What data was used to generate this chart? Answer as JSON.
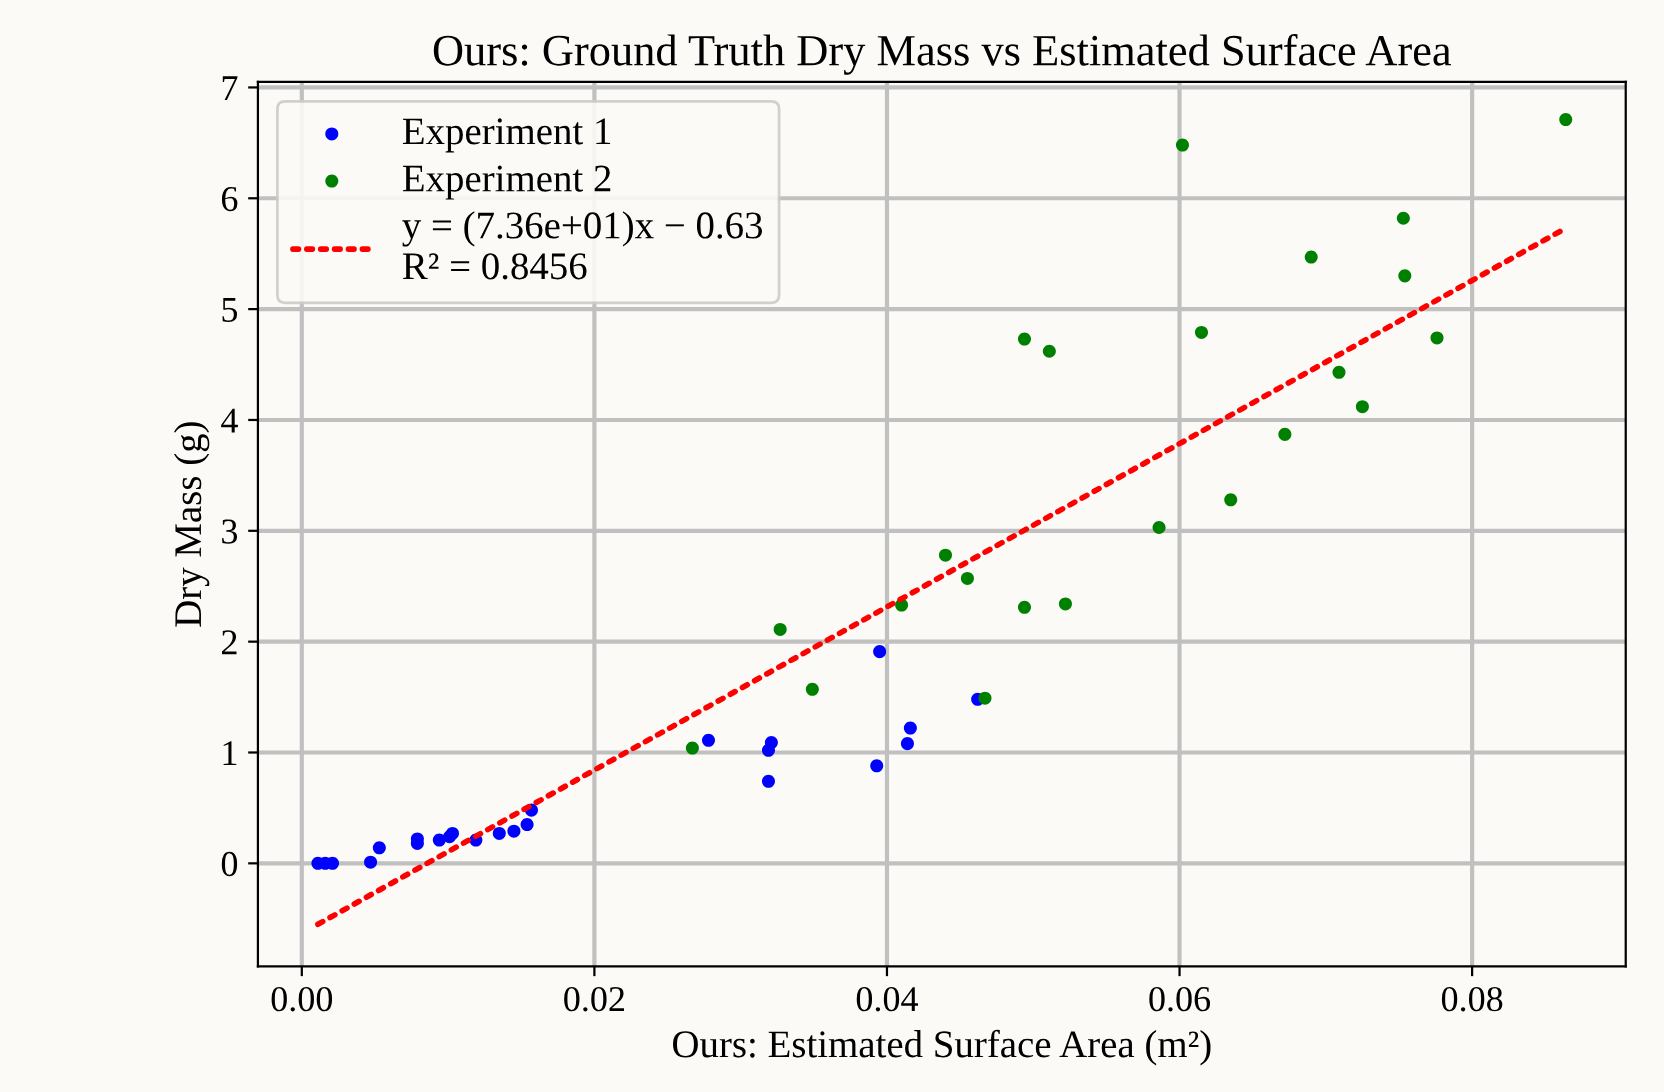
{
  "chart_data": {
    "type": "scatter",
    "title": "Ours: Ground Truth Dry Mass vs Estimated Surface Area",
    "xlabel": "Ours: Estimated Surface Area (m²)",
    "ylabel": "Dry Mass (g)",
    "xlim": [
      -0.003,
      0.0905
    ],
    "ylim": [
      -0.93,
      7.05
    ],
    "xticks": [
      {
        "value": 0,
        "label": "0.00"
      },
      0.02,
      0.04,
      0.06,
      0.08
    ],
    "yticks": [
      0,
      1,
      2,
      3,
      4,
      5,
      6,
      7
    ],
    "grid": true,
    "legend": "top left",
    "marker": "circle",
    "series": [
      {
        "name": "Experiment 1",
        "color": "#0000ff",
        "x": [
          0.0011,
          0.0016,
          0.0021,
          0.0047,
          0.0053,
          0.0079,
          0.0079,
          0.0094,
          0.0101,
          0.0103,
          0.0119,
          0.0135,
          0.0145,
          0.0154,
          0.0157,
          0.0278,
          0.0319,
          0.0319,
          0.0321,
          0.0393,
          0.0395,
          0.0414,
          0.0416,
          0.0462
        ],
        "values": [
          0.0,
          0.0,
          0.0,
          0.01,
          0.14,
          0.18,
          0.22,
          0.21,
          0.24,
          0.27,
          0.21,
          0.27,
          0.29,
          0.35,
          0.48,
          1.11,
          0.74,
          1.02,
          1.09,
          0.88,
          1.91,
          1.08,
          1.22,
          1.48
        ]
      },
      {
        "name": "Experiment 2",
        "color": "#008000",
        "x": [
          0.0267,
          0.0327,
          0.0349,
          0.041,
          0.044,
          0.0455,
          0.0467,
          0.0494,
          0.0494,
          0.0511,
          0.0522,
          0.0586,
          0.0602,
          0.0615,
          0.0635,
          0.0672,
          0.069,
          0.0709,
          0.0725,
          0.0753,
          0.0754,
          0.0776,
          0.0864
        ],
        "values": [
          1.04,
          2.11,
          1.57,
          2.33,
          2.78,
          2.57,
          1.49,
          2.31,
          4.73,
          4.62,
          2.34,
          3.03,
          6.48,
          4.79,
          3.28,
          3.87,
          5.47,
          4.43,
          4.12,
          5.82,
          5.3,
          4.74,
          6.71
        ]
      },
      {
        "name": "y = (7.36e+01)x − 0.63\nR² = 0.8456",
        "type": "line",
        "color": "#ff0000",
        "line_style": "dotted",
        "marker": "none",
        "x": [
          0.0011,
          0.0864
        ],
        "values": [
          -0.55,
          5.73
        ]
      }
    ]
  }
}
